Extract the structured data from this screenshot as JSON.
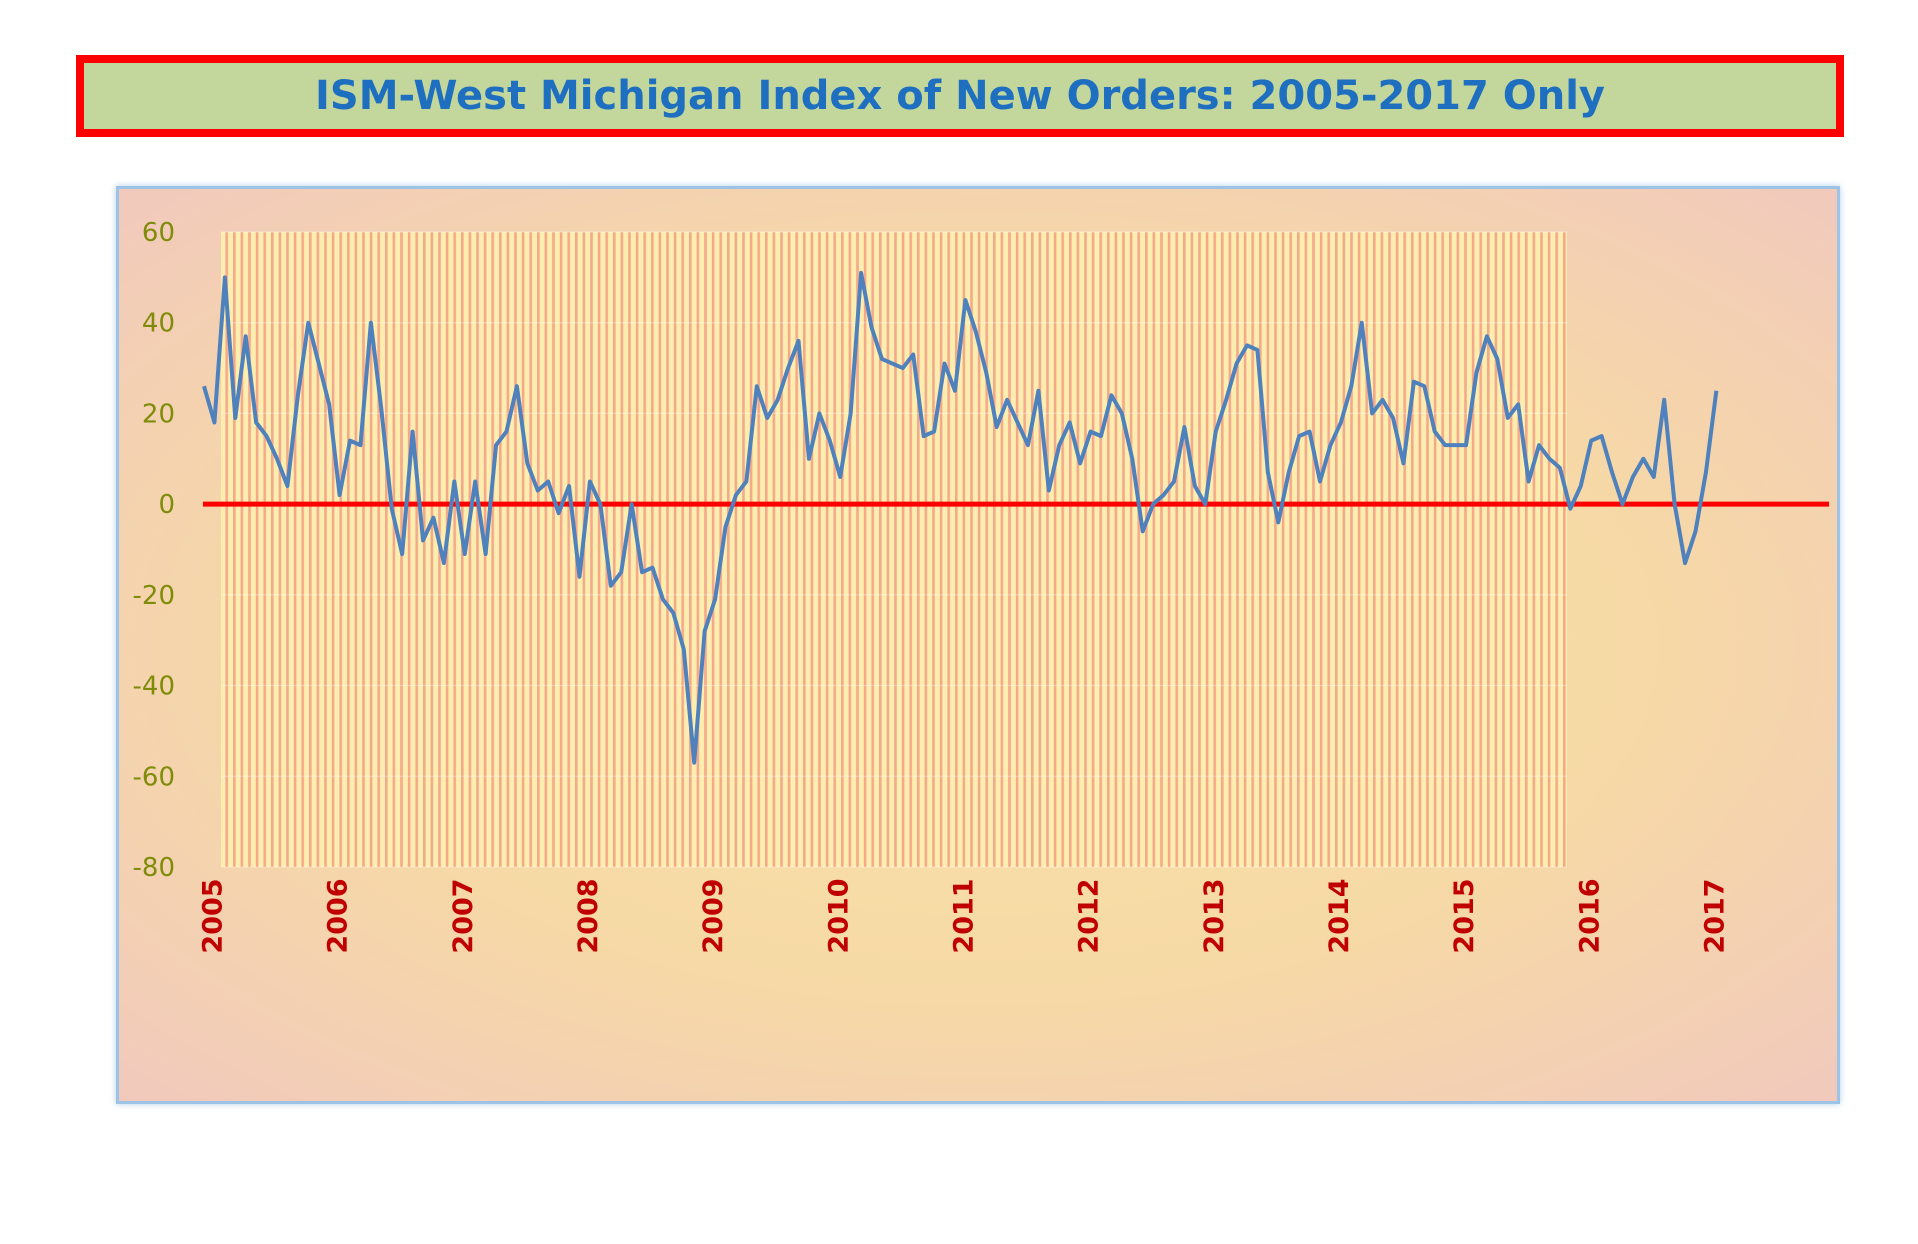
{
  "title": "ISM-West Michigan Index of New Orders: 2005-2017 Only",
  "colors": {
    "title_border": "#ff0000",
    "title_bg": "#c3d69b",
    "title_text": "#1f6fc0",
    "series_line": "#4f81bd",
    "zero_line": "#ff0000",
    "ytick_text": "#7f8c0a",
    "xtick_text": "#c00000"
  },
  "chart_data": {
    "type": "line",
    "title": "ISM-West Michigan Index of New Orders: 2005-2017 Only",
    "xlabel": "",
    "ylabel": "",
    "ylim": [
      -80,
      60
    ],
    "yticks": [
      60,
      40,
      20,
      0,
      -20,
      -40,
      -60,
      -80
    ],
    "xticks": [
      "2005",
      "2006",
      "2007",
      "2008",
      "2009",
      "2010",
      "2011",
      "2012",
      "2013",
      "2014",
      "2015",
      "2016",
      "2017"
    ],
    "xticks_start_month": "2005-01",
    "grid": "vertical stripes",
    "reference_line": 0,
    "series": [
      {
        "start": "2005-01",
        "frequency": "monthly",
        "values": [
          26,
          18,
          50,
          19,
          37,
          18,
          15,
          10,
          4,
          24,
          40,
          31,
          22,
          2,
          14,
          13,
          40,
          21,
          -1,
          -11,
          16,
          -8,
          -3,
          -13,
          5,
          -11,
          5,
          -11,
          13,
          16,
          26,
          9,
          3,
          5,
          -2,
          4,
          -16,
          5,
          0,
          -18,
          -15,
          0,
          -15,
          -14,
          -21,
          -24,
          -32,
          -57,
          -28,
          -21,
          -5,
          2,
          5,
          26,
          19,
          23,
          30,
          36,
          10,
          20,
          14,
          6,
          20,
          51,
          39,
          32,
          31,
          30,
          33,
          15,
          16,
          31,
          25,
          45,
          38,
          29,
          17,
          23,
          18,
          13,
          25,
          3,
          13,
          18,
          9,
          16,
          15,
          24,
          20,
          10,
          -6,
          0,
          2,
          5,
          17,
          4,
          0,
          16,
          23,
          31,
          35,
          34,
          7,
          -4,
          7,
          15,
          16,
          5,
          13,
          18,
          26,
          40,
          20,
          23,
          19,
          9,
          27,
          26,
          16,
          13,
          13,
          13,
          29,
          37,
          32,
          19,
          22,
          5,
          13,
          10,
          8,
          -1,
          4,
          14,
          15,
          7,
          0,
          6,
          10,
          6,
          23,
          0,
          -13,
          -6,
          7,
          25
        ]
      }
    ]
  }
}
